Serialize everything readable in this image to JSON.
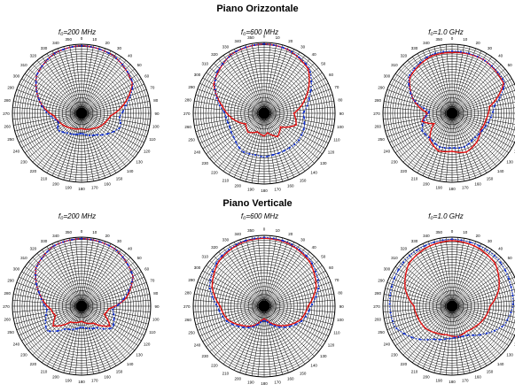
{
  "sections": [
    {
      "title": "Piano Orizzontale",
      "plots": [
        {
          "freq_label": "f₀=200 MHz"
        },
        {
          "freq_label": "f₀=600 MHz"
        },
        {
          "freq_label": "f₀=1.0 GHz"
        }
      ]
    },
    {
      "title": "Piano Verticale",
      "plots": [
        {
          "freq_label": "f₀=200 MHz"
        },
        {
          "freq_label": "f₀=600 MHz"
        },
        {
          "freq_label": "f₀=1.0 GHz"
        }
      ]
    }
  ],
  "colors": {
    "red_series": "#e01010",
    "blue_series": "#1030d0",
    "grid": "#000000",
    "background": "#ffffff"
  },
  "chart_data": [
    {
      "type": "polar",
      "freq_label": "f₀=200 MHz",
      "plane": "Piano Orizzontale",
      "angle_ticks_deg": [
        0,
        10,
        20,
        30,
        40,
        50,
        60,
        70,
        80,
        90,
        100,
        110,
        120,
        130,
        140,
        150,
        160,
        170,
        180,
        190,
        200,
        210,
        220,
        230,
        240,
        250,
        260,
        270,
        280,
        290,
        300,
        310,
        320,
        330,
        340,
        350
      ],
      "series": [
        {
          "color": "red",
          "r": [
            [
              0,
              0.98
            ],
            [
              30,
              0.95
            ],
            [
              60,
              0.85
            ],
            [
              80,
              0.6
            ],
            [
              95,
              0.42
            ],
            [
              110,
              0.37
            ],
            [
              125,
              0.33
            ],
            [
              145,
              0.27
            ],
            [
              180,
              0.22
            ],
            [
              215,
              0.26
            ],
            [
              235,
              0.31
            ],
            [
              250,
              0.35
            ],
            [
              265,
              0.4
            ],
            [
              285,
              0.62
            ],
            [
              310,
              0.85
            ],
            [
              335,
              0.95
            ]
          ]
        },
        {
          "color": "blue",
          "r": [
            [
              0,
              0.98
            ],
            [
              30,
              0.95
            ],
            [
              60,
              0.86
            ],
            [
              80,
              0.65
            ],
            [
              95,
              0.55
            ],
            [
              110,
              0.6
            ],
            [
              125,
              0.5
            ],
            [
              145,
              0.38
            ],
            [
              180,
              0.29
            ],
            [
              215,
              0.35
            ],
            [
              235,
              0.42
            ],
            [
              250,
              0.35
            ],
            [
              265,
              0.45
            ],
            [
              285,
              0.62
            ],
            [
              310,
              0.85
            ],
            [
              335,
              0.95
            ]
          ]
        }
      ]
    },
    {
      "type": "polar",
      "freq_label": "f₀=600 MHz",
      "plane": "Piano Orizzontale",
      "angle_ticks_deg": [
        0,
        10,
        20,
        30,
        40,
        50,
        60,
        70,
        80,
        90,
        100,
        110,
        120,
        130,
        140,
        150,
        160,
        170,
        180,
        190,
        200,
        210,
        220,
        230,
        240,
        250,
        260,
        270,
        280,
        290,
        300,
        310,
        320,
        330,
        340,
        350
      ],
      "series": [
        {
          "color": "red",
          "r": [
            [
              0,
              0.98
            ],
            [
              20,
              0.96
            ],
            [
              45,
              0.88
            ],
            [
              70,
              0.62
            ],
            [
              90,
              0.42
            ],
            [
              110,
              0.48
            ],
            [
              130,
              0.3
            ],
            [
              150,
              0.38
            ],
            [
              170,
              0.28
            ],
            [
              180,
              0.32
            ],
            [
              200,
              0.28
            ],
            [
              220,
              0.35
            ],
            [
              240,
              0.3
            ],
            [
              260,
              0.45
            ],
            [
              280,
              0.6
            ],
            [
              300,
              0.82
            ],
            [
              330,
              0.95
            ]
          ]
        },
        {
          "color": "blue",
          "r": [
            [
              0,
              0.98
            ],
            [
              20,
              0.96
            ],
            [
              45,
              0.9
            ],
            [
              70,
              0.68
            ],
            [
              90,
              0.55
            ],
            [
              110,
              0.6
            ],
            [
              130,
              0.62
            ],
            [
              150,
              0.6
            ],
            [
              170,
              0.6
            ],
            [
              180,
              0.62
            ],
            [
              190,
              0.6
            ],
            [
              210,
              0.62
            ],
            [
              230,
              0.55
            ],
            [
              250,
              0.52
            ],
            [
              270,
              0.55
            ],
            [
              290,
              0.72
            ],
            [
              310,
              0.88
            ],
            [
              335,
              0.96
            ]
          ]
        }
      ]
    },
    {
      "type": "polar",
      "freq_label": "f₀=1.0 GHz",
      "plane": "Piano Orizzontale",
      "angle_ticks_deg": [
        0,
        10,
        20,
        30,
        40,
        50,
        60,
        70,
        80,
        90,
        100,
        110,
        120,
        130,
        140,
        150,
        160,
        170,
        180,
        190,
        200,
        210,
        220,
        230,
        240,
        250,
        260,
        270,
        280,
        290,
        300,
        310,
        320,
        330,
        340,
        350
      ],
      "series": [
        {
          "color": "red",
          "r": [
            [
              0,
              0.88
            ],
            [
              30,
              0.9
            ],
            [
              60,
              0.86
            ],
            [
              80,
              0.55
            ],
            [
              100,
              0.5
            ],
            [
              120,
              0.48
            ],
            [
              140,
              0.55
            ],
            [
              160,
              0.6
            ],
            [
              180,
              0.55
            ],
            [
              200,
              0.58
            ],
            [
              220,
              0.5
            ],
            [
              240,
              0.3
            ],
            [
              255,
              0.45
            ],
            [
              270,
              0.35
            ],
            [
              290,
              0.6
            ],
            [
              310,
              0.8
            ],
            [
              340,
              0.88
            ]
          ]
        },
        {
          "color": "blue",
          "r": [
            [
              0,
              0.9
            ],
            [
              30,
              0.9
            ],
            [
              60,
              0.88
            ],
            [
              80,
              0.62
            ],
            [
              100,
              0.55
            ],
            [
              120,
              0.5
            ],
            [
              140,
              0.48
            ],
            [
              160,
              0.52
            ],
            [
              180,
              0.5
            ],
            [
              200,
              0.52
            ],
            [
              220,
              0.48
            ],
            [
              240,
              0.5
            ],
            [
              260,
              0.4
            ],
            [
              275,
              0.32
            ],
            [
              290,
              0.6
            ],
            [
              310,
              0.82
            ],
            [
              340,
              0.9
            ]
          ]
        }
      ]
    },
    {
      "type": "polar",
      "freq_label": "f₀=200 MHz",
      "plane": "Piano Verticale",
      "angle_ticks_deg": [
        0,
        10,
        20,
        30,
        40,
        50,
        60,
        70,
        80,
        90,
        100,
        110,
        120,
        130,
        140,
        150,
        160,
        170,
        180,
        190,
        200,
        210,
        220,
        230,
        240,
        250,
        260,
        270,
        280,
        290,
        300,
        310,
        320,
        330,
        340,
        350
      ],
      "series": [
        {
          "color": "red",
          "r": [
            [
              0,
              0.98
            ],
            [
              30,
              0.96
            ],
            [
              60,
              0.86
            ],
            [
              80,
              0.65
            ],
            [
              95,
              0.4
            ],
            [
              110,
              0.35
            ],
            [
              125,
              0.5
            ],
            [
              145,
              0.3
            ],
            [
              180,
              0.22
            ],
            [
              215,
              0.28
            ],
            [
              235,
              0.5
            ],
            [
              250,
              0.4
            ],
            [
              265,
              0.45
            ],
            [
              285,
              0.62
            ],
            [
              310,
              0.86
            ],
            [
              335,
              0.96
            ]
          ]
        },
        {
          "color": "blue",
          "r": [
            [
              0,
              0.98
            ],
            [
              30,
              0.96
            ],
            [
              60,
              0.86
            ],
            [
              80,
              0.62
            ],
            [
              95,
              0.45
            ],
            [
              110,
              0.5
            ],
            [
              125,
              0.55
            ],
            [
              145,
              0.38
            ],
            [
              180,
              0.3
            ],
            [
              215,
              0.4
            ],
            [
              235,
              0.62
            ],
            [
              250,
              0.55
            ],
            [
              265,
              0.5
            ],
            [
              285,
              0.62
            ],
            [
              310,
              0.86
            ],
            [
              335,
              0.96
            ]
          ]
        }
      ]
    },
    {
      "type": "polar",
      "freq_label": "f₀=600 MHz",
      "plane": "Piano Verticale",
      "angle_ticks_deg": [
        0,
        10,
        20,
        30,
        40,
        50,
        60,
        70,
        80,
        90,
        100,
        110,
        120,
        130,
        140,
        150,
        160,
        170,
        180,
        190,
        200,
        210,
        220,
        230,
        240,
        250,
        260,
        270,
        280,
        290,
        300,
        310,
        320,
        330,
        340,
        350
      ],
      "series": [
        {
          "color": "red",
          "r": [
            [
              0,
              0.96
            ],
            [
              20,
              0.95
            ],
            [
              45,
              0.9
            ],
            [
              70,
              0.78
            ],
            [
              90,
              0.62
            ],
            [
              110,
              0.55
            ],
            [
              130,
              0.42
            ],
            [
              150,
              0.3
            ],
            [
              170,
              0.2
            ],
            [
              180,
              0.18
            ],
            [
              190,
              0.2
            ],
            [
              210,
              0.32
            ],
            [
              230,
              0.42
            ],
            [
              250,
              0.55
            ],
            [
              270,
              0.62
            ],
            [
              290,
              0.78
            ],
            [
              315,
              0.9
            ],
            [
              340,
              0.95
            ]
          ]
        },
        {
          "color": "blue",
          "r": [
            [
              0,
              0.97
            ],
            [
              20,
              0.96
            ],
            [
              45,
              0.92
            ],
            [
              70,
              0.82
            ],
            [
              90,
              0.66
            ],
            [
              110,
              0.58
            ],
            [
              130,
              0.45
            ],
            [
              150,
              0.33
            ],
            [
              170,
              0.22
            ],
            [
              180,
              0.2
            ],
            [
              190,
              0.22
            ],
            [
              210,
              0.34
            ],
            [
              230,
              0.45
            ],
            [
              250,
              0.58
            ],
            [
              270,
              0.66
            ],
            [
              290,
              0.82
            ],
            [
              315,
              0.92
            ],
            [
              340,
              0.96
            ]
          ]
        }
      ]
    },
    {
      "type": "polar",
      "freq_label": "f₀=1.0 GHz",
      "plane": "Piano Verticale",
      "angle_ticks_deg": [
        0,
        10,
        20,
        30,
        40,
        50,
        60,
        70,
        80,
        90,
        100,
        110,
        120,
        130,
        140,
        150,
        160,
        170,
        180,
        190,
        200,
        210,
        220,
        230,
        240,
        250,
        260,
        270,
        280,
        290,
        300,
        310,
        320,
        330,
        340,
        350
      ],
      "series": [
        {
          "color": "red",
          "r": [
            [
              0,
              0.95
            ],
            [
              20,
              0.93
            ],
            [
              45,
              0.88
            ],
            [
              70,
              0.72
            ],
            [
              90,
              0.55
            ],
            [
              110,
              0.5
            ],
            [
              130,
              0.45
            ],
            [
              150,
              0.42
            ],
            [
              170,
              0.45
            ],
            [
              190,
              0.42
            ],
            [
              210,
              0.45
            ],
            [
              230,
              0.5
            ],
            [
              250,
              0.52
            ],
            [
              270,
              0.55
            ],
            [
              290,
              0.72
            ],
            [
              315,
              0.88
            ],
            [
              340,
              0.93
            ]
          ]
        },
        {
          "color": "blue",
          "r": [
            [
              0,
              0.97
            ],
            [
              20,
              0.96
            ],
            [
              45,
              0.95
            ],
            [
              70,
              0.9
            ],
            [
              90,
              0.88
            ],
            [
              110,
              0.8
            ],
            [
              130,
              0.62
            ],
            [
              150,
              0.48
            ],
            [
              170,
              0.45
            ],
            [
              190,
              0.48
            ],
            [
              210,
              0.55
            ],
            [
              230,
              0.72
            ],
            [
              250,
              0.88
            ],
            [
              270,
              0.9
            ],
            [
              290,
              0.92
            ],
            [
              315,
              0.95
            ],
            [
              340,
              0.96
            ]
          ]
        }
      ]
    }
  ]
}
